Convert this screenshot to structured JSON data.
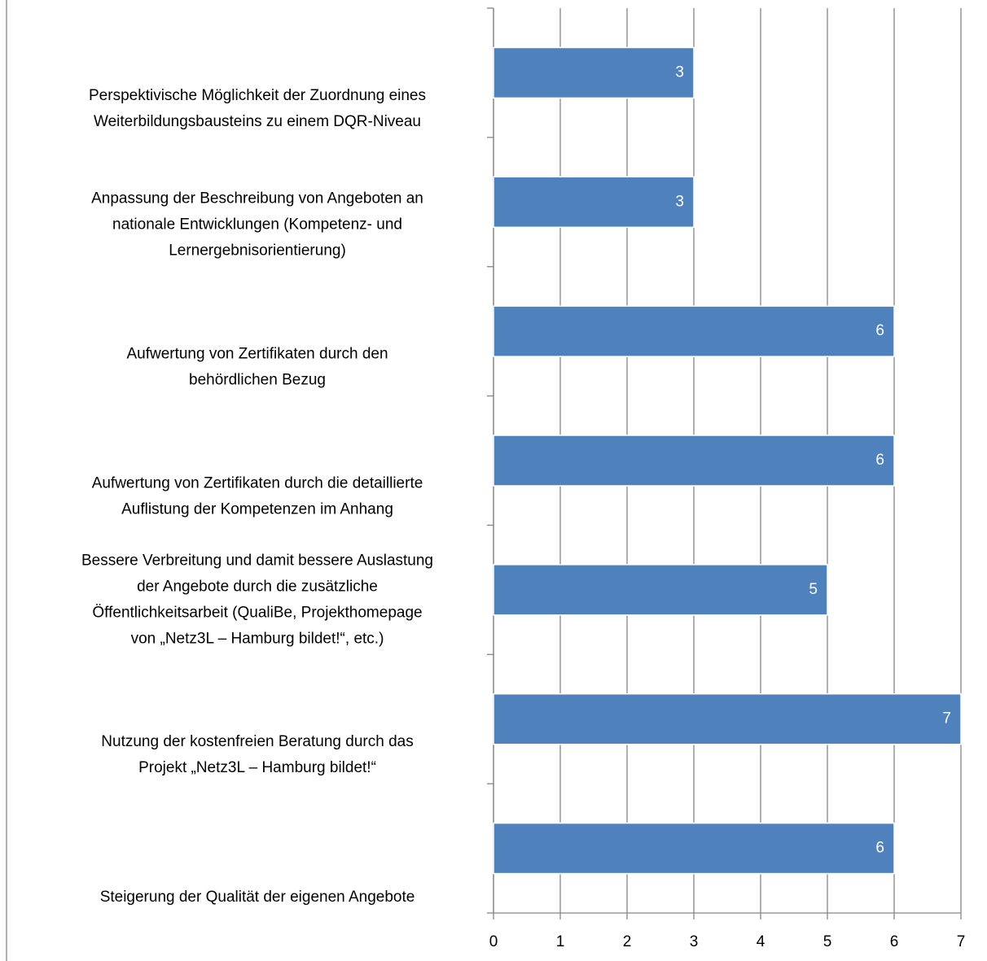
{
  "chart_data": {
    "type": "bar",
    "orientation": "horizontal",
    "categories": [
      [
        "Perspektivische Möglichkeit der Zuordnung eines",
        "Weiterbildungsbausteins zu einem DQR-Niveau"
      ],
      [
        "Anpassung der Beschreibung von Angeboten an",
        "nationale Entwicklungen (Kompetenz- und",
        "Lernergebnisorientierung)"
      ],
      [
        "Aufwertung von  Zertifikaten durch den",
        "behördlichen Bezug"
      ],
      [
        "Aufwertung von  Zertifikaten durch die detaillierte",
        "Auflistung der Kompetenzen im Anhang"
      ],
      [
        "Bessere Verbreitung und damit bessere Auslastung",
        "der Angebote durch die zusätzliche",
        "Öffentlichkeitsarbeit (QualiBe, Projekthomepage",
        "von „Netz3L – Hamburg bildet!“, etc.)"
      ],
      [
        "Nutzung der kostenfreien Beratung durch das",
        "Projekt „Netz3L – Hamburg bildet!“"
      ],
      [
        "Steigerung der Qualität der eigenen Angebote"
      ]
    ],
    "values": [
      3,
      3,
      6,
      6,
      5,
      7,
      6
    ],
    "color": "#4f81bd",
    "xlim": [
      0,
      7
    ],
    "xticks": [
      0,
      1,
      2,
      3,
      4,
      5,
      6,
      7
    ],
    "grid": true
  }
}
